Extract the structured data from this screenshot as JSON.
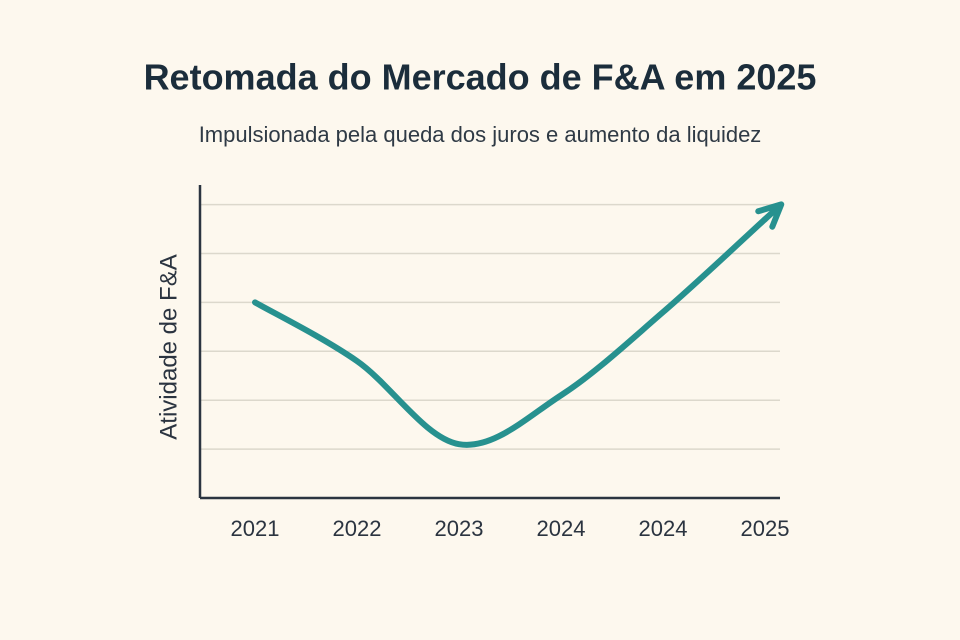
{
  "chart_data": {
    "type": "line",
    "title": "Retomada do Mercado de F&A em 2025",
    "subtitle": "Impulsionada pela queda dos juros e aumento da liquidez",
    "y_label": "Atividade de F&A",
    "categories": [
      "2021",
      "2022",
      "2023",
      "2024",
      "2024",
      "2025"
    ],
    "values": [
      4.0,
      2.8,
      1.1,
      2.1,
      3.8,
      5.7
    ],
    "color": "#27918f",
    "ylim": [
      0,
      6.4
    ],
    "yticks": [
      1,
      2,
      3,
      4,
      5,
      6
    ],
    "grid": true
  }
}
